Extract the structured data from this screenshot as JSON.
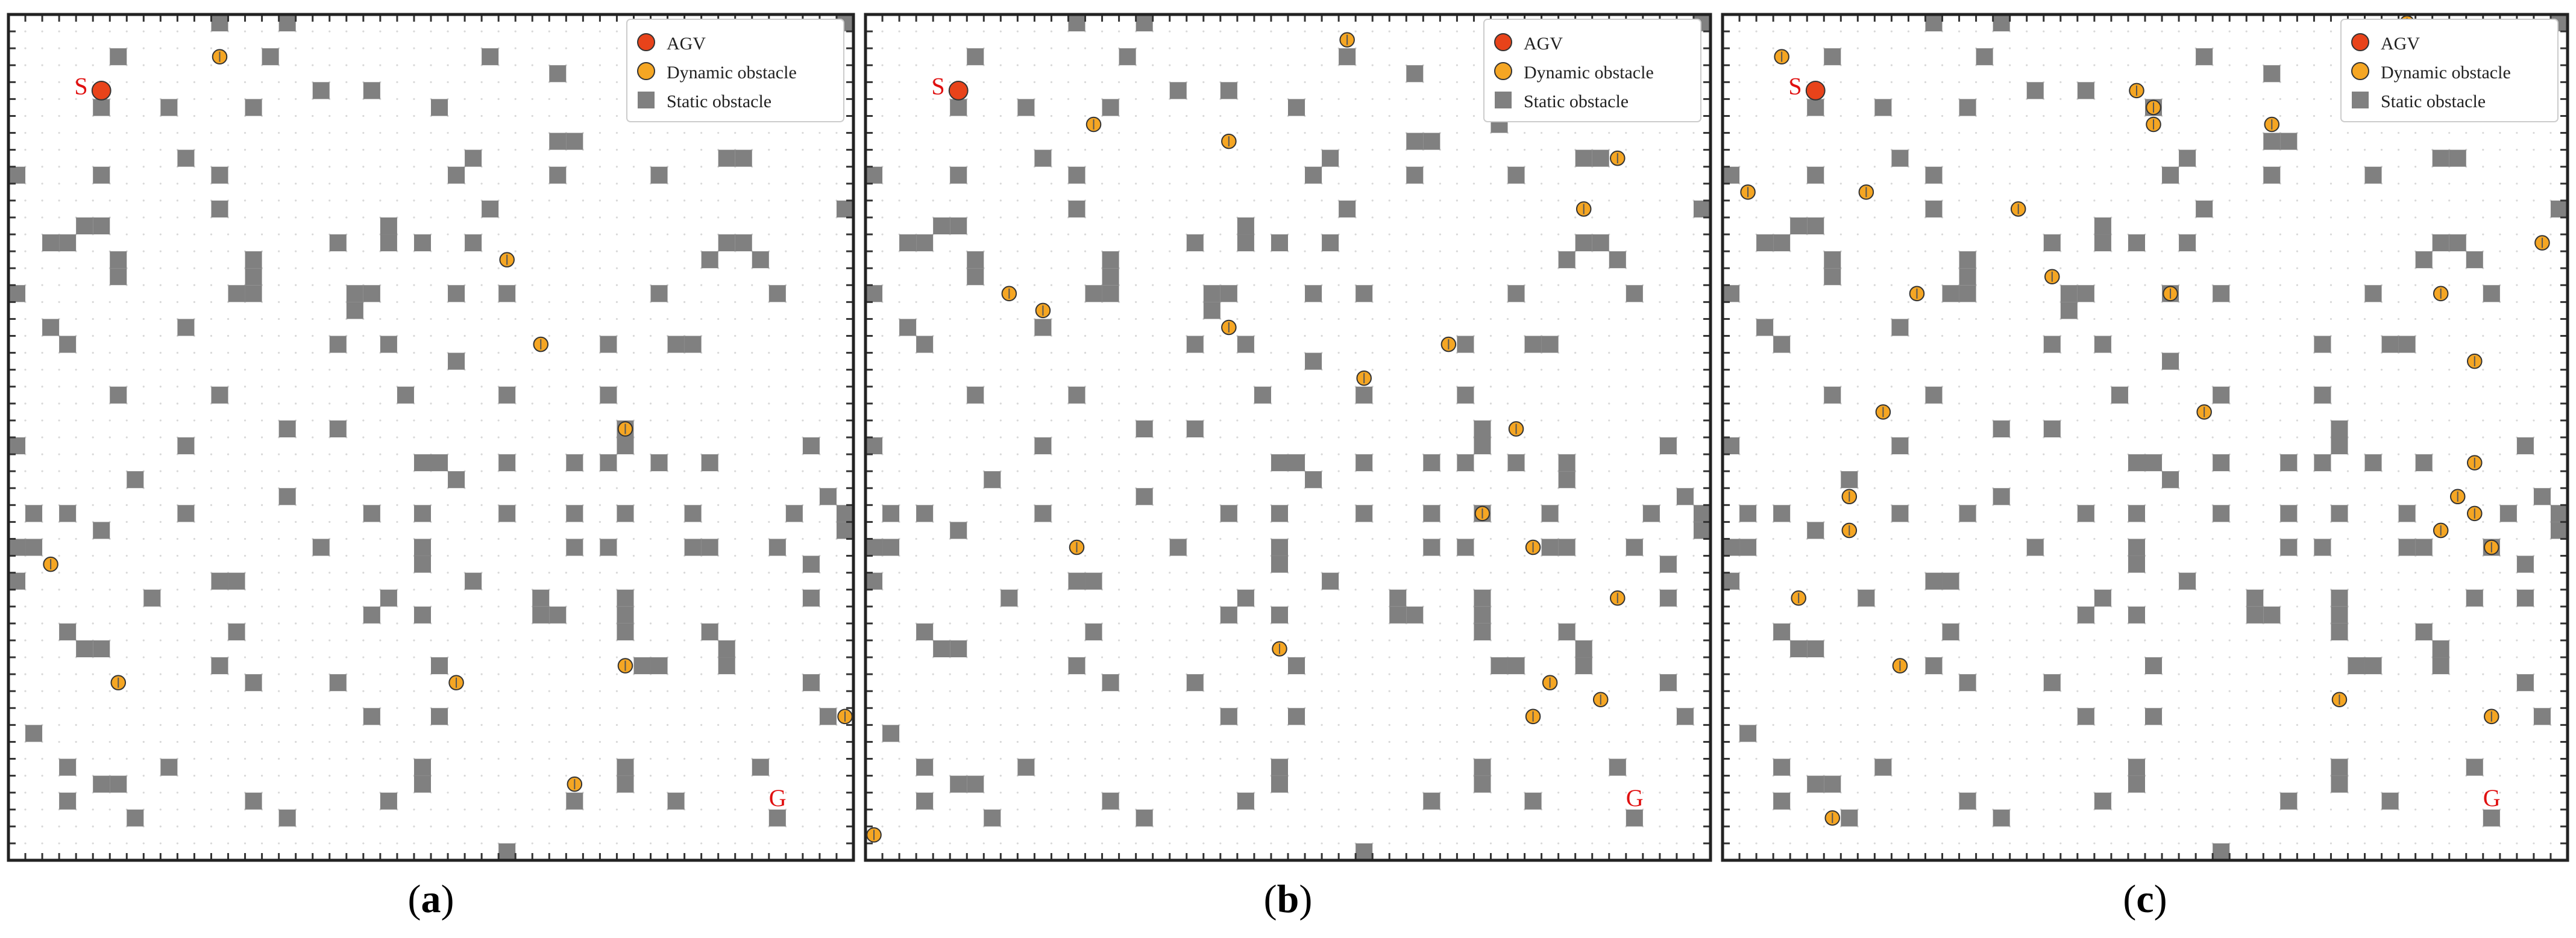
{
  "legend": {
    "agv_label": "AGV",
    "dynamic_label": "Dynamic obstacle",
    "static_label": "Static obstacle"
  },
  "start_label": "S",
  "goal_label": "G",
  "colors": {
    "agv": "#e8431a",
    "dynamic": "#f5a623",
    "static": "#808080",
    "start_goal_text": "#e01010"
  },
  "grid": {
    "cols": 50,
    "rows": 50
  },
  "start": [
    5,
    4
  ],
  "goal": [
    45,
    46
  ],
  "static_obstacles": [
    [
      12,
      0
    ],
    [
      16,
      0
    ],
    [
      49,
      0
    ],
    [
      6,
      2
    ],
    [
      15,
      2
    ],
    [
      28,
      2
    ],
    [
      32,
      3
    ],
    [
      18,
      4
    ],
    [
      21,
      4
    ],
    [
      5,
      5
    ],
    [
      9,
      5
    ],
    [
      14,
      5
    ],
    [
      25,
      5
    ],
    [
      39,
      5
    ],
    [
      32,
      7
    ],
    [
      33,
      7
    ],
    [
      10,
      8
    ],
    [
      42,
      8
    ],
    [
      43,
      8
    ],
    [
      0,
      9
    ],
    [
      5,
      9
    ],
    [
      12,
      9
    ],
    [
      26,
      9
    ],
    [
      32,
      9
    ],
    [
      38,
      9
    ],
    [
      27,
      8
    ],
    [
      12,
      11
    ],
    [
      28,
      11
    ],
    [
      49,
      11
    ],
    [
      4,
      12
    ],
    [
      5,
      12
    ],
    [
      22,
      12
    ],
    [
      2,
      13
    ],
    [
      3,
      13
    ],
    [
      19,
      13
    ],
    [
      22,
      13
    ],
    [
      24,
      13
    ],
    [
      27,
      13
    ],
    [
      42,
      13
    ],
    [
      43,
      13
    ],
    [
      6,
      14
    ],
    [
      14,
      14
    ],
    [
      41,
      14
    ],
    [
      44,
      14
    ],
    [
      6,
      15
    ],
    [
      14,
      15
    ],
    [
      0,
      16
    ],
    [
      13,
      16
    ],
    [
      14,
      16
    ],
    [
      20,
      16
    ],
    [
      21,
      16
    ],
    [
      26,
      16
    ],
    [
      29,
      16
    ],
    [
      38,
      16
    ],
    [
      45,
      16
    ],
    [
      20,
      17
    ],
    [
      2,
      18
    ],
    [
      10,
      18
    ],
    [
      3,
      19
    ],
    [
      19,
      19
    ],
    [
      22,
      19
    ],
    [
      35,
      19
    ],
    [
      39,
      19
    ],
    [
      40,
      19
    ],
    [
      26,
      20
    ],
    [
      6,
      22
    ],
    [
      12,
      22
    ],
    [
      23,
      22
    ],
    [
      29,
      22
    ],
    [
      35,
      22
    ],
    [
      16,
      24
    ],
    [
      19,
      24
    ],
    [
      36,
      24
    ],
    [
      0,
      25
    ],
    [
      10,
      25
    ],
    [
      36,
      25
    ],
    [
      47,
      25
    ],
    [
      24,
      26
    ],
    [
      25,
      26
    ],
    [
      29,
      26
    ],
    [
      33,
      26
    ],
    [
      35,
      26
    ],
    [
      38,
      26
    ],
    [
      41,
      26
    ],
    [
      7,
      27
    ],
    [
      26,
      27
    ],
    [
      16,
      28
    ],
    [
      48,
      28
    ],
    [
      1,
      29
    ],
    [
      3,
      29
    ],
    [
      10,
      29
    ],
    [
      21,
      29
    ],
    [
      24,
      29
    ],
    [
      29,
      29
    ],
    [
      33,
      29
    ],
    [
      36,
      29
    ],
    [
      40,
      29
    ],
    [
      46,
      29
    ],
    [
      49,
      29
    ],
    [
      5,
      30
    ],
    [
      49,
      30
    ],
    [
      0,
      31
    ],
    [
      1,
      31
    ],
    [
      18,
      31
    ],
    [
      24,
      31
    ],
    [
      33,
      31
    ],
    [
      35,
      31
    ],
    [
      40,
      31
    ],
    [
      41,
      31
    ],
    [
      45,
      31
    ],
    [
      24,
      32
    ],
    [
      47,
      32
    ],
    [
      0,
      33
    ],
    [
      12,
      33
    ],
    [
      13,
      33
    ],
    [
      27,
      33
    ],
    [
      8,
      34
    ],
    [
      22,
      34
    ],
    [
      31,
      34
    ],
    [
      36,
      34
    ],
    [
      47,
      34
    ],
    [
      21,
      35
    ],
    [
      24,
      35
    ],
    [
      31,
      35
    ],
    [
      32,
      35
    ],
    [
      36,
      35
    ],
    [
      3,
      36
    ],
    [
      13,
      36
    ],
    [
      36,
      36
    ],
    [
      41,
      36
    ],
    [
      4,
      37
    ],
    [
      5,
      37
    ],
    [
      42,
      37
    ],
    [
      12,
      38
    ],
    [
      25,
      38
    ],
    [
      37,
      38
    ],
    [
      38,
      38
    ],
    [
      42,
      38
    ],
    [
      14,
      39
    ],
    [
      19,
      39
    ],
    [
      47,
      39
    ],
    [
      21,
      41
    ],
    [
      25,
      41
    ],
    [
      48,
      41
    ],
    [
      1,
      42
    ],
    [
      3,
      44
    ],
    [
      9,
      44
    ],
    [
      24,
      44
    ],
    [
      36,
      44
    ],
    [
      44,
      44
    ],
    [
      24,
      45
    ],
    [
      36,
      45
    ],
    [
      5,
      45
    ],
    [
      6,
      45
    ],
    [
      3,
      46
    ],
    [
      14,
      46
    ],
    [
      22,
      46
    ],
    [
      33,
      46
    ],
    [
      39,
      46
    ],
    [
      7,
      47
    ],
    [
      16,
      47
    ],
    [
      45,
      47
    ],
    [
      29,
      49
    ]
  ],
  "panels": [
    {
      "caption": "a",
      "dynamic_obstacles": [
        [
          12,
          2
        ],
        [
          29,
          14
        ],
        [
          31,
          19
        ],
        [
          36,
          24
        ],
        [
          2,
          32
        ],
        [
          6,
          39
        ],
        [
          26,
          39
        ],
        [
          36,
          38
        ],
        [
          49,
          41
        ],
        [
          33,
          45
        ]
      ],
      "extra_static": []
    },
    {
      "caption": "b",
      "dynamic_obstacles": [
        [
          28,
          1
        ],
        [
          13,
          6
        ],
        [
          21,
          7
        ],
        [
          44,
          8
        ],
        [
          42,
          11
        ],
        [
          8,
          16
        ],
        [
          10,
          17
        ],
        [
          21,
          18
        ],
        [
          34,
          19
        ],
        [
          29,
          21
        ],
        [
          38,
          24
        ],
        [
          36,
          29
        ],
        [
          12,
          31
        ],
        [
          39,
          31
        ],
        [
          44,
          34
        ],
        [
          24,
          37
        ],
        [
          40,
          39
        ],
        [
          39,
          41
        ],
        [
          43,
          40
        ],
        [
          0,
          48
        ]
      ],
      "extra_static": [
        [
          37,
          4
        ],
        [
          37,
          6
        ],
        [
          41,
          27
        ]
      ]
    },
    {
      "caption": "c",
      "dynamic_obstacles": [
        [
          3,
          2
        ],
        [
          40,
          0
        ],
        [
          24,
          4
        ],
        [
          25,
          5
        ],
        [
          25,
          6
        ],
        [
          32,
          6
        ],
        [
          1,
          10
        ],
        [
          8,
          10
        ],
        [
          17,
          11
        ],
        [
          48,
          13
        ],
        [
          19,
          15
        ],
        [
          11,
          16
        ],
        [
          26,
          16
        ],
        [
          42,
          16
        ],
        [
          44,
          20
        ],
        [
          9,
          23
        ],
        [
          28,
          23
        ],
        [
          44,
          26
        ],
        [
          7,
          28
        ],
        [
          43,
          28
        ],
        [
          44,
          29
        ],
        [
          42,
          30
        ],
        [
          45,
          31
        ],
        [
          7,
          30
        ],
        [
          4,
          34
        ],
        [
          10,
          38
        ],
        [
          36,
          40
        ],
        [
          45,
          41
        ],
        [
          6,
          47
        ]
      ],
      "extra_static": [
        [
          44,
          34
        ],
        [
          14,
          29
        ]
      ]
    }
  ]
}
